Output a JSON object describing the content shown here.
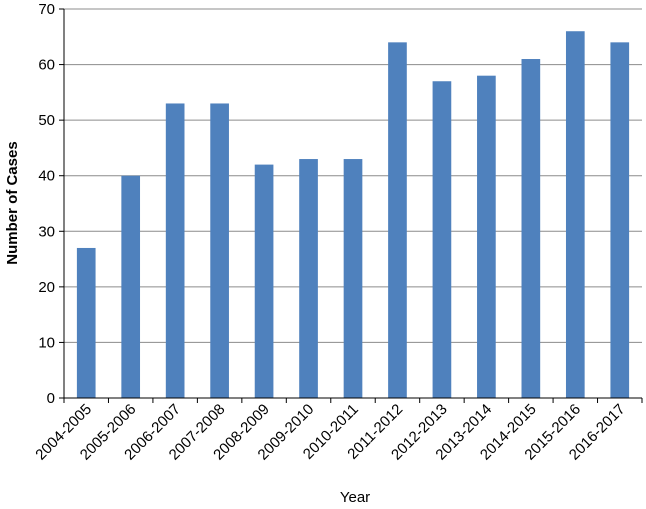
{
  "chart_data": {
    "type": "bar",
    "title": "",
    "xlabel": "Year",
    "ylabel": "Number of Cases",
    "categories": [
      "2004-2005",
      "2005-2006",
      "2006-2007",
      "2007-2008",
      "2008-2009",
      "2009-2010",
      "2010-2011",
      "2011-2012",
      "2012-2013",
      "2013-2014",
      "2014-2015",
      "2015-2016",
      "2016-2017"
    ],
    "values": [
      27,
      40,
      53,
      53,
      42,
      43,
      43,
      64,
      57,
      58,
      61,
      66,
      64
    ],
    "ylim": [
      0,
      70
    ],
    "yticks": [
      0,
      10,
      20,
      30,
      40,
      50,
      60,
      70
    ],
    "grid": true,
    "legend": "none",
    "bar_color": "#4f81bd",
    "grid_color": "#8c8c8c"
  }
}
